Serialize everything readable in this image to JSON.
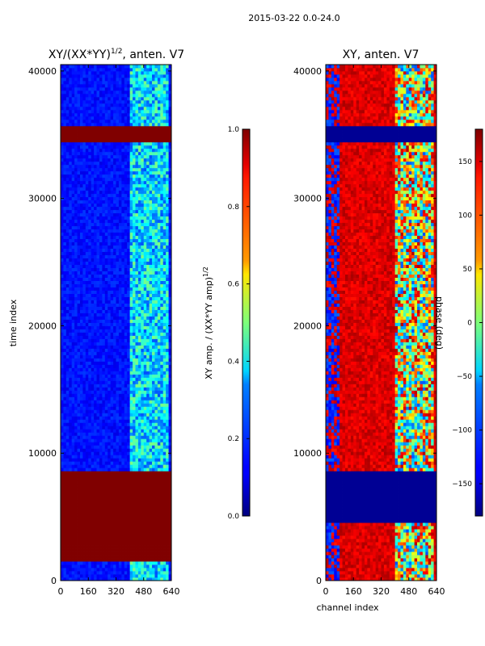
{
  "figure_title": "2015-03-22 0.0-24.0",
  "chart_data": [
    {
      "type": "heatmap",
      "title": "XY/(XX*YY)^{1/2}, anten. V7",
      "title_main": "XY/(XX*YY)",
      "title_exp": "1/2",
      "title_tail": ", anten. V7",
      "xlabel": "",
      "ylabel": "time index",
      "xlim": [
        0,
        640
      ],
      "ylim": [
        0,
        40500
      ],
      "xticks": [
        0,
        160,
        320,
        480,
        640
      ],
      "yticks": [
        0,
        10000,
        20000,
        30000,
        40000
      ],
      "colorbar": {
        "label_main": "XY amp. / (XX*YY amp)",
        "label_exp": "1/2",
        "range": [
          0.0,
          1.0
        ],
        "ticks": [
          "0.0",
          "0.2",
          "0.4",
          "0.6",
          "0.8",
          "1.0"
        ],
        "tick_values": [
          0.0,
          0.2,
          0.4,
          0.6,
          0.8,
          1.0
        ],
        "colormap": "jet"
      },
      "saturated_bands": [
        [
          1500,
          8500
        ],
        [
          34300,
          35700
        ]
      ],
      "rfi_channel_range": [
        400,
        620
      ]
    },
    {
      "type": "heatmap",
      "title": "XY, anten. V7",
      "xlabel": "channel index",
      "ylabel": "",
      "xlim": [
        0,
        640
      ],
      "ylim": [
        0,
        40500
      ],
      "xticks": [
        0,
        160,
        320,
        480,
        640
      ],
      "yticks": [
        0,
        10000,
        20000,
        30000,
        40000
      ],
      "colorbar": {
        "label": "phase (deg)",
        "range": [
          -180,
          180
        ],
        "ticks": [
          "150",
          "100",
          "50",
          "0",
          "−50",
          "−100",
          "−150"
        ],
        "tick_values": [
          150,
          100,
          50,
          0,
          -50,
          -100,
          -150
        ],
        "colormap": "jet"
      },
      "low_phase_bands": [
        [
          4500,
          8500
        ],
        [
          34300,
          35700
        ]
      ],
      "rfi_channel_range": [
        400,
        620
      ]
    }
  ]
}
